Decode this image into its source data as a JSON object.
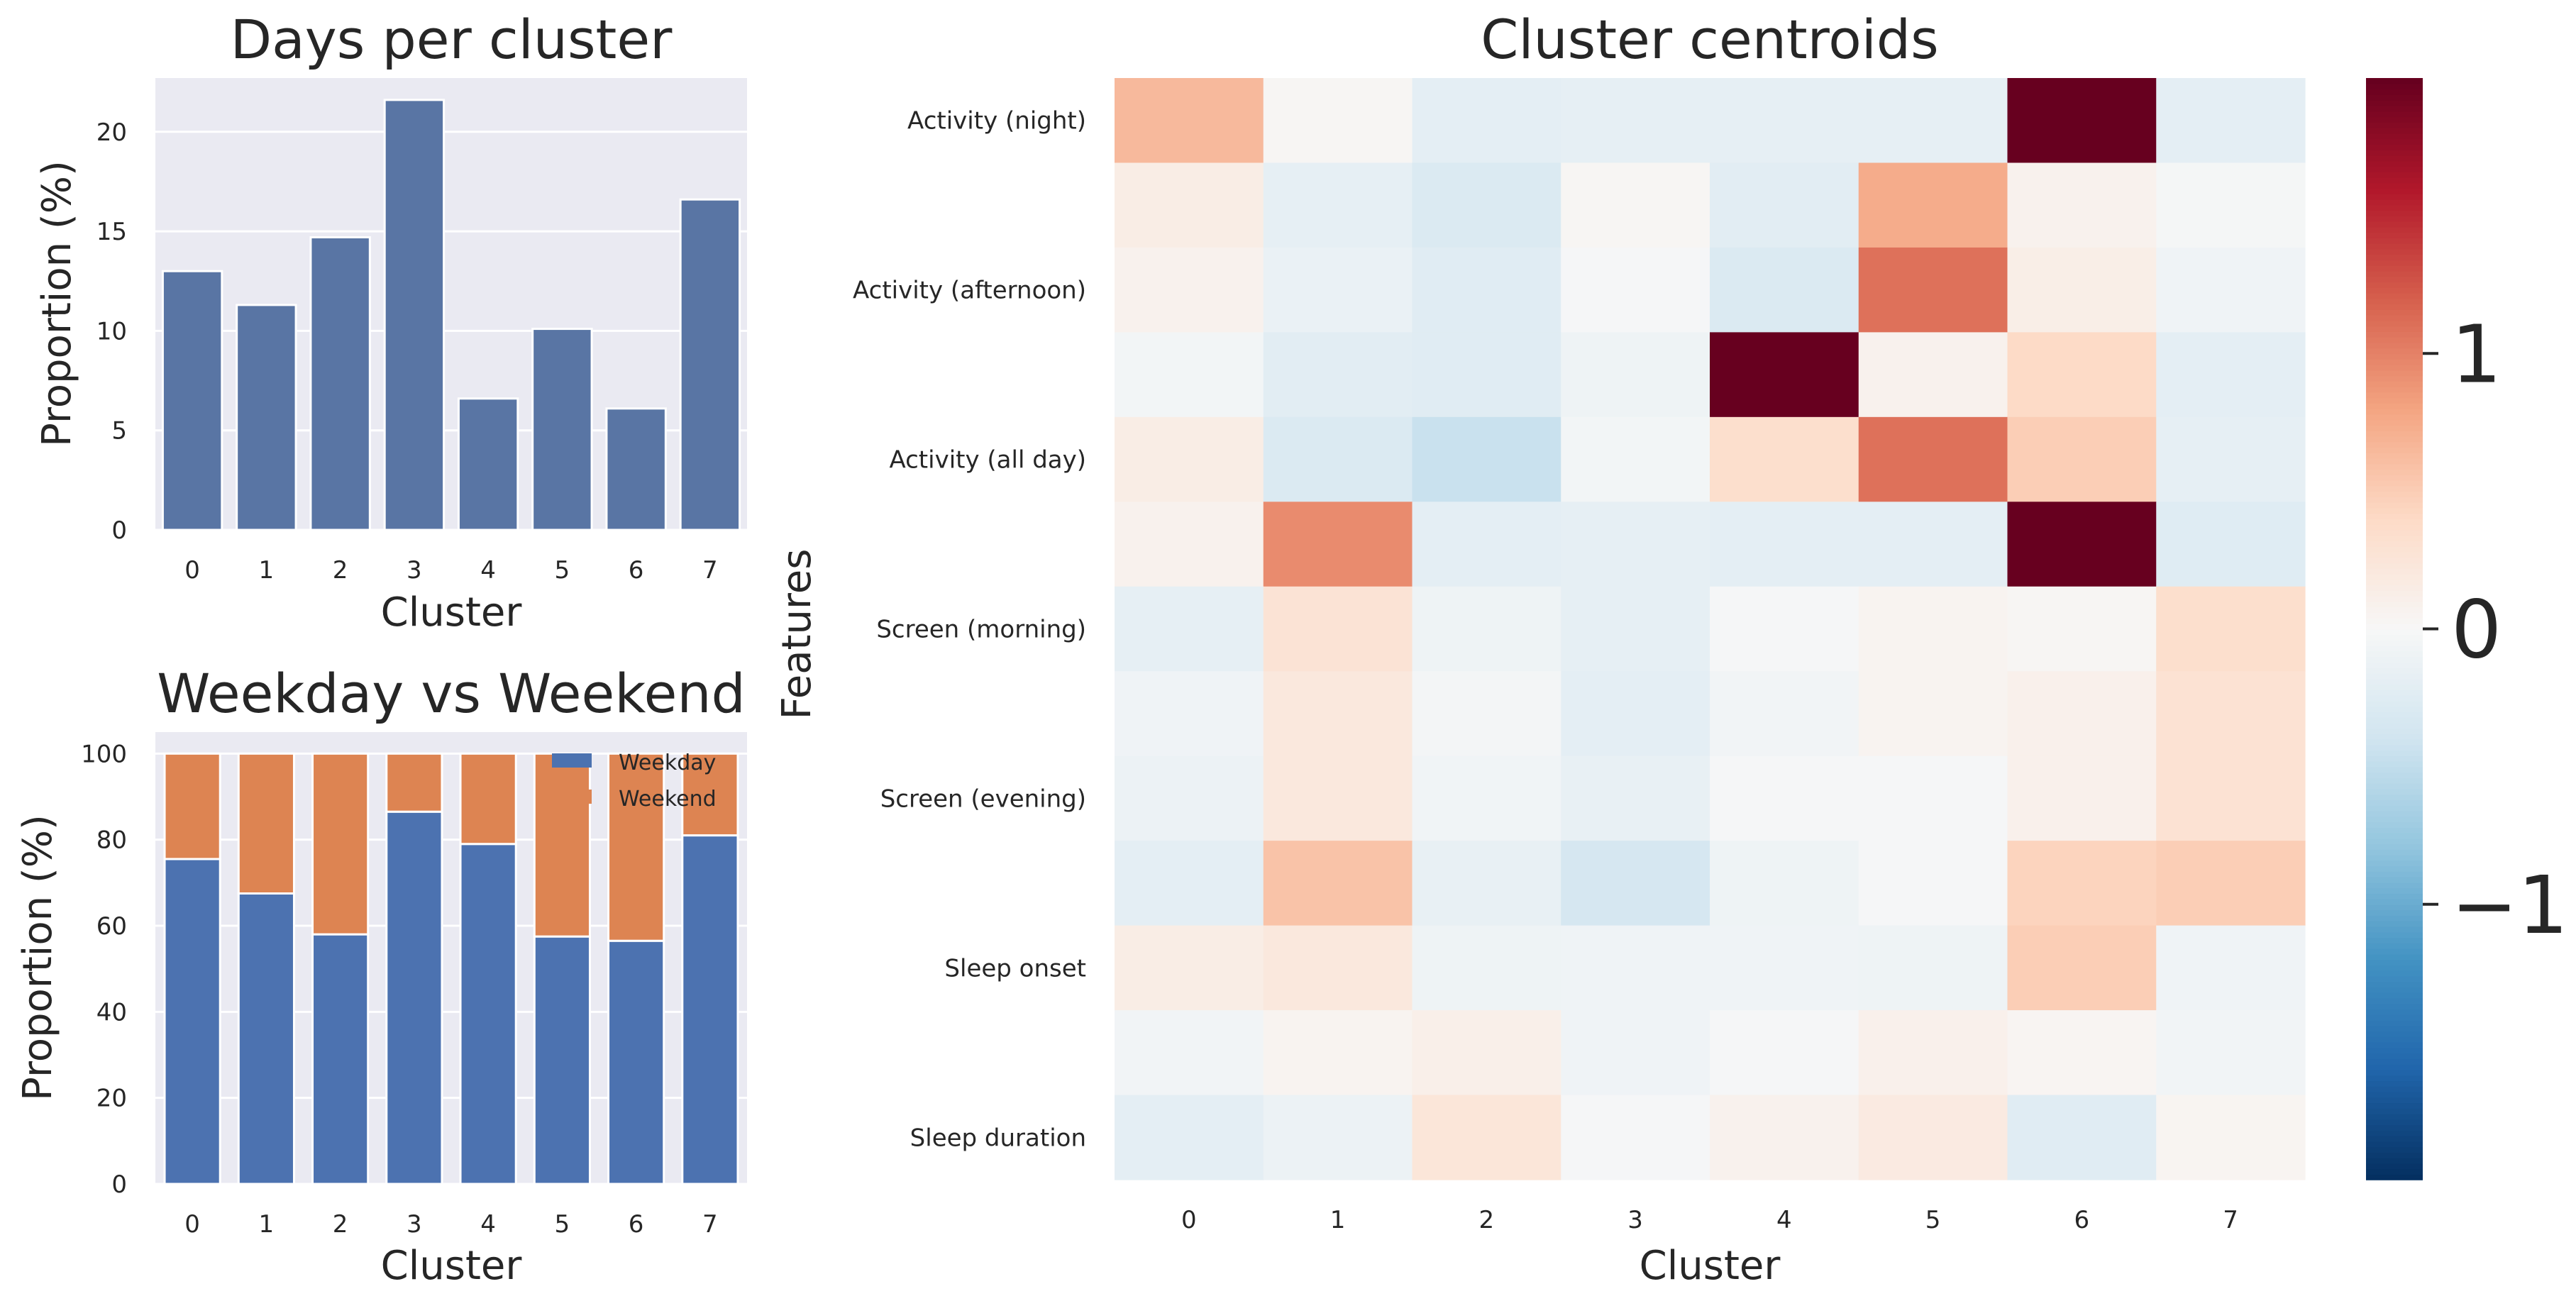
{
  "chart_data": [
    {
      "type": "bar",
      "title": "Days per cluster",
      "xlabel": "Cluster",
      "ylabel": "Proportion (%)",
      "categories": [
        "0",
        "1",
        "2",
        "3",
        "4",
        "5",
        "6",
        "7"
      ],
      "values": [
        13.0,
        11.3,
        14.7,
        21.6,
        6.6,
        10.1,
        6.1,
        16.6
      ],
      "ylim": [
        0,
        22.7
      ],
      "yticks": [
        0,
        5,
        10,
        15,
        20
      ],
      "grid": true,
      "color": "#5975a4"
    },
    {
      "type": "bar",
      "stacked": true,
      "title": "Weekday vs Weekend",
      "xlabel": "Cluster",
      "ylabel": "Proportion (%)",
      "categories": [
        "0",
        "1",
        "2",
        "3",
        "4",
        "5",
        "6",
        "7"
      ],
      "series": [
        {
          "name": "Weekday",
          "color": "#4c72b0",
          "values": [
            75.5,
            67.5,
            58.0,
            86.5,
            79.0,
            57.5,
            56.5,
            81.0
          ]
        },
        {
          "name": "Weekend",
          "color": "#dd8452",
          "values": [
            24.5,
            32.5,
            42.0,
            13.5,
            21.0,
            42.5,
            43.5,
            19.0
          ]
        }
      ],
      "ylim": [
        0,
        105
      ],
      "yticks": [
        0,
        20,
        40,
        60,
        80,
        100
      ],
      "legend": "top-right",
      "grid": true
    },
    {
      "type": "heatmap",
      "title": "Cluster centroids",
      "xlabel": "Cluster",
      "ylabel": "Features",
      "x_categories": [
        "0",
        "1",
        "2",
        "3",
        "4",
        "5",
        "6",
        "7"
      ],
      "y_tick_labels": [
        "Activity (night)",
        "",
        "Activity (afternoon)",
        "",
        "Activity (all day)",
        "",
        "Screen (morning)",
        "",
        "Screen (evening)",
        "",
        "Sleep onset",
        "",
        "Sleep duration"
      ],
      "values": [
        [
          0.65,
          0.03,
          -0.2,
          -0.18,
          -0.18,
          -0.18,
          2.0,
          -0.2
        ],
        [
          0.15,
          -0.18,
          -0.3,
          0.03,
          -0.22,
          0.75,
          0.08,
          -0.03
        ],
        [
          0.08,
          -0.14,
          -0.24,
          -0.02,
          -0.3,
          1.1,
          0.13,
          -0.08
        ],
        [
          -0.05,
          -0.22,
          -0.24,
          -0.1,
          2.0,
          0.08,
          0.4,
          -0.2
        ],
        [
          0.15,
          -0.3,
          -0.45,
          -0.05,
          0.35,
          1.1,
          0.5,
          -0.18
        ],
        [
          0.08,
          0.95,
          -0.2,
          -0.18,
          -0.2,
          -0.2,
          2.0,
          -0.25
        ],
        [
          -0.18,
          0.28,
          -0.1,
          -0.18,
          -0.02,
          0.06,
          0.03,
          0.35
        ],
        [
          -0.08,
          0.22,
          -0.04,
          -0.2,
          -0.06,
          0.06,
          0.1,
          0.3
        ],
        [
          -0.12,
          0.22,
          -0.07,
          -0.16,
          -0.02,
          -0.02,
          0.1,
          0.3
        ],
        [
          -0.2,
          0.58,
          -0.16,
          -0.35,
          -0.1,
          -0.02,
          0.45,
          0.5
        ],
        [
          0.15,
          0.22,
          -0.1,
          -0.08,
          -0.08,
          -0.1,
          0.5,
          -0.08
        ],
        [
          -0.06,
          0.06,
          0.12,
          -0.08,
          -0.02,
          0.1,
          0.04,
          -0.06
        ],
        [
          -0.2,
          -0.12,
          0.25,
          -0.02,
          0.08,
          0.18,
          -0.24,
          0.05
        ]
      ],
      "colormap": "RdBu_r",
      "vmin": -2.0,
      "vmax": 2.0,
      "colorbar_ticks": [
        1,
        0,
        -1
      ],
      "colorbar_tick_labels": [
        "1",
        "0",
        "−1"
      ]
    }
  ]
}
